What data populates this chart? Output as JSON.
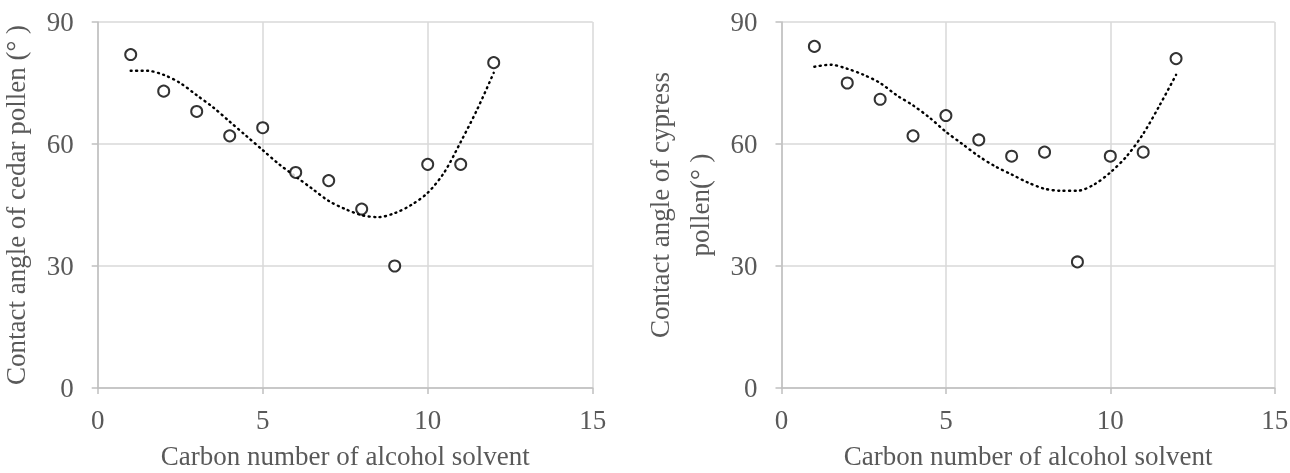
{
  "chart_data": [
    {
      "type": "scatter",
      "xlabel": "Carbon number of alcohol solvent",
      "ylabel": "Contact angle of cedar pollen (° )",
      "xlim": [
        0,
        15
      ],
      "xticks": [
        0,
        5,
        10,
        15
      ],
      "ylim": [
        0,
        90
      ],
      "yticks": [
        0,
        30,
        60,
        90
      ],
      "grid": true,
      "series": [
        {
          "type": "scatter",
          "color": "#000000",
          "marker": "circle",
          "x": [
            1,
            2,
            3,
            4,
            5,
            6,
            7,
            8,
            9,
            10,
            11,
            12
          ],
          "values": [
            82,
            73,
            68,
            62,
            64,
            53,
            51,
            44,
            30,
            55,
            55,
            80
          ]
        },
        {
          "type": "line",
          "color": "#000000",
          "marker": "none",
          "line_style": "dotted",
          "x": [
            1,
            1.5,
            2,
            2.5,
            3,
            3.5,
            4,
            4.5,
            5,
            5.5,
            6,
            6.5,
            7,
            7.5,
            8,
            8.5,
            9,
            9.5,
            10,
            10.5,
            11,
            11.5,
            12
          ],
          "values": [
            78,
            78,
            77,
            75,
            72,
            69,
            65.5,
            62,
            58.5,
            55,
            52,
            49,
            46,
            44,
            42.5,
            42,
            43,
            45,
            48,
            53,
            60.5,
            68.5,
            77.5
          ]
        }
      ]
    },
    {
      "type": "scatter",
      "xlabel": "Carbon number of alcohol solvent",
      "ylabel": "Contact angle of cypress pollen(° )",
      "xlim": [
        0,
        15
      ],
      "xticks": [
        0,
        5,
        10,
        15
      ],
      "ylim": [
        0,
        90
      ],
      "yticks": [
        0,
        30,
        60,
        90
      ],
      "grid": true,
      "series": [
        {
          "type": "scatter",
          "color": "#000000",
          "marker": "circle",
          "x": [
            1,
            2,
            3,
            4,
            5,
            6,
            7,
            8,
            9,
            10,
            11,
            12
          ],
          "values": [
            84,
            75,
            71,
            62,
            67,
            61,
            57,
            58,
            31,
            57,
            58,
            81
          ]
        },
        {
          "type": "line",
          "color": "#000000",
          "marker": "none",
          "line_style": "dotted",
          "x": [
            1,
            1.5,
            2,
            2.5,
            3,
            3.5,
            4,
            4.5,
            5,
            5.5,
            6,
            6.5,
            7,
            7.5,
            8,
            8.5,
            9,
            9.5,
            10,
            10.5,
            11,
            11.5,
            12
          ],
          "values": [
            79,
            79.5,
            78.5,
            77,
            75,
            72,
            69.5,
            66.5,
            63,
            60,
            57,
            54.5,
            52.5,
            50.5,
            49,
            48.5,
            48.5,
            50,
            53,
            57,
            62.5,
            69.5,
            77
          ]
        }
      ]
    }
  ]
}
